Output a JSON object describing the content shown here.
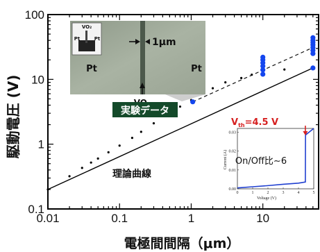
{
  "chart_data": {
    "type": "scatter",
    "x_scale": "log",
    "y_scale": "log",
    "xlim": [
      0.01,
      60
    ],
    "ylim": [
      0.1,
      100
    ],
    "xlabel": "電極間間隔（μm）",
    "ylabel": "駆動電圧 (V)",
    "x_ticks": [
      {
        "value": 0.01,
        "label": "0.01"
      },
      {
        "value": 0.1,
        "label": "0.1"
      },
      {
        "value": 1,
        "label": "1"
      },
      {
        "value": 10,
        "label": "10"
      }
    ],
    "y_ticks": [
      {
        "value": 0.1,
        "label": "0.1"
      },
      {
        "value": 1,
        "label": "1"
      },
      {
        "value": 10,
        "label": "10"
      },
      {
        "value": 100,
        "label": "100"
      }
    ],
    "series": [
      {
        "name": "理論曲線",
        "style": "solid-line-with-dots",
        "color": "#000000",
        "line": [
          [
            0.01,
            0.2
          ],
          [
            50,
            15
          ]
        ],
        "points": [
          [
            0.01,
            0.2
          ],
          [
            0.02,
            0.32
          ],
          [
            0.03,
            0.43
          ],
          [
            0.04,
            0.52
          ],
          [
            0.05,
            0.6
          ],
          [
            0.07,
            0.75
          ],
          [
            0.1,
            0.95
          ],
          [
            0.15,
            1.25
          ],
          [
            0.2,
            1.55
          ],
          [
            0.3,
            2.1
          ],
          [
            0.5,
            3.0
          ],
          [
            0.7,
            3.8
          ],
          [
            1,
            4.8
          ],
          [
            2,
            7.3
          ],
          [
            3,
            9.0
          ],
          [
            5,
            10.5
          ],
          [
            7,
            11.8
          ],
          [
            10,
            13.0
          ],
          [
            20,
            14.2
          ],
          [
            50,
            15.0
          ]
        ]
      },
      {
        "name": "実験データ",
        "style": "markers",
        "color": "#1446ee",
        "points": [
          [
            1.05,
            4.5
          ],
          [
            10,
            12
          ],
          [
            10,
            14
          ],
          [
            10,
            16
          ],
          [
            10,
            18
          ],
          [
            10,
            20
          ],
          [
            10,
            22
          ],
          [
            50,
            15
          ],
          [
            50,
            25
          ],
          [
            50,
            28
          ],
          [
            50,
            31
          ],
          [
            50,
            34
          ],
          [
            50,
            37
          ],
          [
            50,
            40
          ],
          [
            50,
            44
          ]
        ],
        "fit_line": [
          [
            1.05,
            4.5
          ],
          [
            50,
            31
          ]
        ],
        "fit_style": "dashed"
      }
    ],
    "annotations": {
      "data_label": "実験データ",
      "theory_label": "理論曲線",
      "microscope": {
        "electrode_left": "Pt",
        "electrode_right": "Pt",
        "gap_label": "1μm",
        "channel_label": "VO₂",
        "thumb_label": "VO₂",
        "thumb_pt_left": "Pt",
        "thumb_pt_right": "Pt",
        "thumb_pt_bottom": "Pt"
      }
    },
    "inset": {
      "type": "line",
      "title_left": "V",
      "title_sub": "th",
      "title_right": "=4.5 V",
      "text": "On/Off比∼6",
      "xlabel": "Voltage (V)",
      "ylabel": "Current (A)",
      "xlim": [
        0,
        5
      ],
      "ylim": [
        0,
        0.032
      ],
      "x_ticks": [
        "0",
        "1",
        "2",
        "3",
        "4",
        "5"
      ],
      "y_ticks": [
        "0.00",
        "0.01",
        "0.02",
        "0.03"
      ],
      "x": [
        0,
        1,
        2,
        3,
        4,
        4.45,
        4.46,
        5
      ],
      "y": [
        0.0005,
        0.0011,
        0.0017,
        0.0024,
        0.003,
        0.0036,
        0.0285,
        0.032
      ],
      "line_color": "#1f3fd0",
      "arrow_color": "#d62020"
    }
  }
}
